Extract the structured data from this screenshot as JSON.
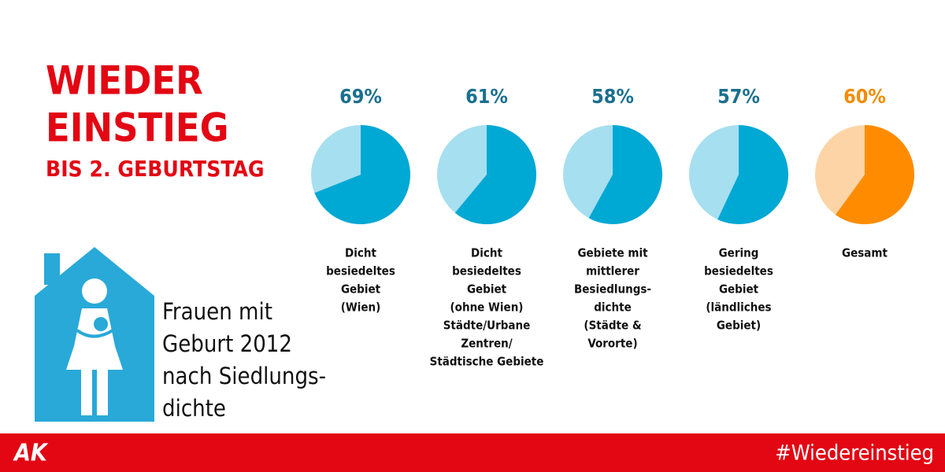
{
  "title": [
    "WIEDER",
    "EINSTIEG"
  ],
  "subtitle": "BIS 2. GEBURTSTAG",
  "description": [
    "Frauen mit",
    "Geburt 2012",
    "nach Siedlungs-",
    "dichte"
  ],
  "footer": {
    "logo": "AK",
    "hashtag": "#Wiedereinstieg"
  },
  "chart_data": [
    {
      "type": "pie",
      "values": [
        69
      ],
      "value_labels": [
        "69%"
      ],
      "color": "#00a8d4",
      "rest_color": "#a6dff0",
      "label_color": "#1b6f8f",
      "label_lines": [
        "Dicht",
        "besiedeltes",
        "Gebiet",
        "(Wien)"
      ]
    },
    {
      "type": "pie",
      "values": [
        61
      ],
      "value_labels": [
        "61%"
      ],
      "color": "#00a8d4",
      "rest_color": "#a6dff0",
      "label_color": "#1b6f8f",
      "label_lines": [
        "Dicht",
        "besiedeltes",
        "Gebiet",
        "(ohne Wien)",
        "Städte/Urbane",
        "Zentren/",
        "Städtische Gebiete"
      ]
    },
    {
      "type": "pie",
      "values": [
        58
      ],
      "value_labels": [
        "58%"
      ],
      "color": "#00a8d4",
      "rest_color": "#a6dff0",
      "label_color": "#1b6f8f",
      "label_lines": [
        "Gebiete mit",
        "mittlerer",
        "Besiedlungs-",
        "dichte",
        "(Städte &",
        "Vororte)"
      ]
    },
    {
      "type": "pie",
      "values": [
        57
      ],
      "value_labels": [
        "57%"
      ],
      "color": "#00a8d4",
      "rest_color": "#a6dff0",
      "label_color": "#1b6f8f",
      "label_lines": [
        "Gering",
        "besiedeltes",
        "Gebiet",
        "(ländliches",
        "Gebiet)"
      ]
    },
    {
      "type": "pie",
      "values": [
        60
      ],
      "value_labels": [
        "60%"
      ],
      "color": "#ff8c00",
      "rest_color": "#fdd4a6",
      "label_color": "#f28c00",
      "label_lines": [
        "Gesamt"
      ]
    }
  ]
}
